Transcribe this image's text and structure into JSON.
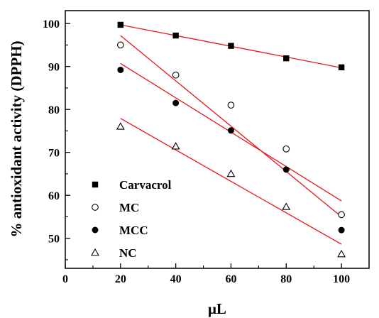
{
  "chart_data": {
    "type": "scatter",
    "title": "",
    "xlabel": "μL",
    "ylabel": "% antioxidant activity (DPPH)",
    "xlim": [
      0,
      110
    ],
    "ylim": [
      43,
      103
    ],
    "xticks": [
      0,
      20,
      40,
      60,
      80,
      100
    ],
    "yticks": [
      50,
      60,
      70,
      80,
      90,
      100
    ],
    "x_tick_labels": [
      "0",
      "20",
      "40",
      "60",
      "80",
      "100"
    ],
    "y_tick_labels": [
      "50",
      "60",
      "70",
      "80",
      "90",
      "100"
    ],
    "grid": false,
    "legend_position": "bottom-left",
    "x": [
      20,
      40,
      60,
      80,
      100
    ],
    "series": [
      {
        "name": "Carvacrol",
        "marker": "filled-square",
        "values": [
          99.7,
          97.2,
          94.8,
          91.9,
          89.8
        ],
        "fit": {
          "start": [
            20,
            99.7
          ],
          "end": [
            100,
            89.7
          ]
        }
      },
      {
        "name": "MC",
        "marker": "open-circle",
        "values": [
          95.0,
          88.0,
          81.0,
          70.8,
          55.5
        ],
        "fit": {
          "start": [
            20,
            97.2
          ],
          "end": [
            100,
            55.0
          ]
        }
      },
      {
        "name": "MCC",
        "marker": "filled-circle",
        "values": [
          89.2,
          81.5,
          75.1,
          66.0,
          51.9
        ],
        "fit": {
          "start": [
            20,
            90.7
          ],
          "end": [
            100,
            58.7
          ]
        }
      },
      {
        "name": "NC",
        "marker": "open-triangle",
        "values": [
          76.0,
          71.4,
          65.0,
          57.3,
          46.3
        ],
        "fit": {
          "start": [
            20,
            77.9
          ],
          "end": [
            100,
            48.6
          ]
        }
      }
    ],
    "colors": {
      "markers": "#000000",
      "fit_lines": "#e8161b",
      "axes": "#000000"
    }
  }
}
